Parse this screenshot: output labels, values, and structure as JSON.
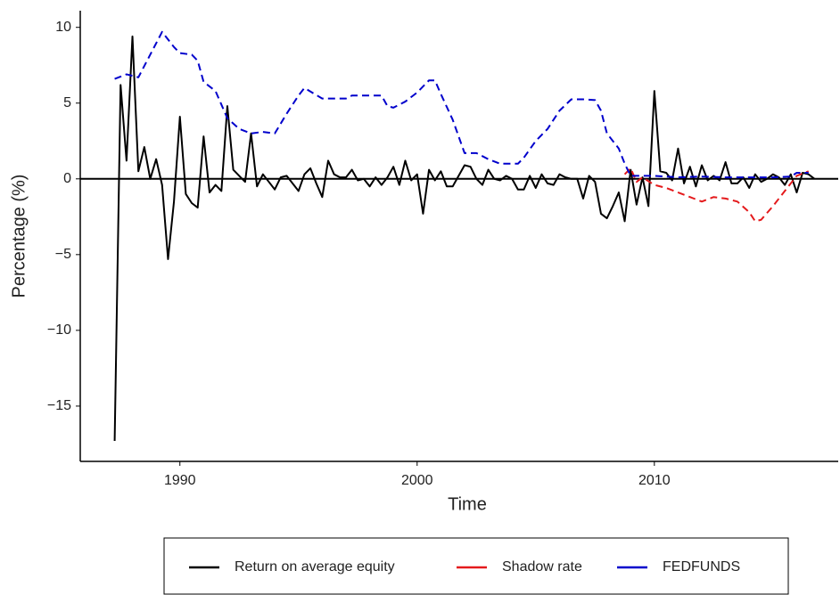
{
  "chart_data": {
    "type": "line",
    "x_label": "Time",
    "y_label": "Percentage (%)",
    "xlim": [
      1985.8,
      2017.75
    ],
    "ylim": [
      -18.65,
      11.1
    ],
    "xticks": [
      1990,
      2000,
      2010
    ],
    "yticks": [
      {
        "value": -15,
        "label": "−15"
      },
      {
        "value": -10,
        "label": "−10"
      },
      {
        "value": -5,
        "label": "−5"
      },
      0,
      5,
      10
    ],
    "reference_line": 0,
    "legend_position": "bottom",
    "series": [
      {
        "name": "Return on average equity",
        "color": "#000000",
        "linestyle": "solid",
        "x": [
          1987.25,
          1987.5,
          1987.75,
          1988,
          1988.25,
          1988.5,
          1988.75,
          1989,
          1989.25,
          1989.5,
          1989.75,
          1990,
          1990.25,
          1990.5,
          1990.75,
          1991,
          1991.25,
          1991.5,
          1991.75,
          1992,
          1992.25,
          1992.5,
          1992.75,
          1993,
          1993.25,
          1993.5,
          1993.75,
          1994,
          1994.25,
          1994.5,
          1994.75,
          1995,
          1995.25,
          1995.5,
          1995.75,
          1996,
          1996.25,
          1996.5,
          1996.75,
          1997,
          1997.25,
          1997.5,
          1997.75,
          1998,
          1998.25,
          1998.5,
          1998.75,
          1999,
          1999.25,
          1999.5,
          1999.75,
          2000,
          2000.25,
          2000.5,
          2000.75,
          2001,
          2001.25,
          2001.5,
          2001.75,
          2002,
          2002.25,
          2002.5,
          2002.75,
          2003,
          2003.25,
          2003.5,
          2003.75,
          2004,
          2004.25,
          2004.5,
          2004.75,
          2005,
          2005.25,
          2005.5,
          2005.75,
          2006,
          2006.25,
          2006.5,
          2006.75,
          2007,
          2007.25,
          2007.5,
          2007.75,
          2008,
          2008.25,
          2008.5,
          2008.75,
          2009,
          2009.25,
          2009.5,
          2009.75,
          2010,
          2010.25,
          2010.5,
          2010.75,
          2011,
          2011.25,
          2011.5,
          2011.75,
          2012,
          2012.25,
          2012.5,
          2012.75,
          2013,
          2013.25,
          2013.5,
          2013.75,
          2014,
          2014.25,
          2014.5,
          2014.75,
          2015,
          2015.25,
          2015.5,
          2015.75,
          2016,
          2016.25,
          2016.5,
          2016.75
        ],
        "values": [
          -17.3,
          6.2,
          1.2,
          9.4,
          0.5,
          2.1,
          0.0,
          1.3,
          -0.4,
          -5.3,
          -1.5,
          4.1,
          -1.0,
          -1.6,
          -1.9,
          2.8,
          -0.9,
          -0.4,
          -0.8,
          4.8,
          0.6,
          0.2,
          -0.2,
          3.0,
          -0.5,
          0.3,
          -0.2,
          -0.7,
          0.1,
          0.2,
          -0.3,
          -0.8,
          0.3,
          0.7,
          -0.3,
          -1.2,
          1.2,
          0.3,
          0.1,
          0.1,
          0.6,
          -0.1,
          0.0,
          -0.5,
          0.1,
          -0.4,
          0.1,
          0.8,
          -0.4,
          1.2,
          -0.1,
          0.3,
          -2.3,
          0.6,
          -0.1,
          0.5,
          -0.5,
          -0.5,
          0.2,
          0.9,
          0.8,
          0.0,
          -0.4,
          0.6,
          0.0,
          -0.1,
          0.2,
          0.0,
          -0.7,
          -0.7,
          0.2,
          -0.6,
          0.3,
          -0.3,
          -0.4,
          0.3,
          0.1,
          0.0,
          0.0,
          -1.3,
          0.2,
          -0.2,
          -2.3,
          -2.6,
          -1.8,
          -0.9,
          -2.8,
          0.6,
          -1.7,
          0.1,
          -1.8,
          5.8,
          0.5,
          0.4,
          -0.1,
          2.0,
          -0.3,
          0.8,
          -0.5,
          0.9,
          -0.1,
          0.2,
          -0.1,
          1.1,
          -0.3,
          -0.3,
          0.1,
          -0.6,
          0.3,
          -0.2,
          0.0,
          0.3,
          0.1,
          -0.4,
          0.3,
          -0.9,
          0.4,
          0.3,
          0.0
        ]
      },
      {
        "name": "Shadow rate",
        "color": "#e41a1c",
        "linestyle": "dashed",
        "x": [
          2008.75,
          2009,
          2009.25,
          2009.5,
          2010,
          2010.5,
          2011,
          2011.5,
          2012,
          2012.5,
          2013,
          2013.5,
          2014,
          2014.25,
          2014.5,
          2015,
          2015.5,
          2016,
          2016.5
        ],
        "values": [
          0.3,
          0.7,
          -0.2,
          0.1,
          -0.4,
          -0.6,
          -0.9,
          -1.2,
          -1.5,
          -1.2,
          -1.3,
          -1.5,
          -2.2,
          -2.8,
          -2.7,
          -1.8,
          -0.8,
          0.2,
          0.5
        ]
      },
      {
        "name": "FEDFUNDS",
        "color": "#0000cc",
        "linestyle": "dashed",
        "x": [
          1987.25,
          1987.75,
          1988.25,
          1988.75,
          1989.25,
          1989.75,
          1990,
          1990.5,
          1990.75,
          1991,
          1991.5,
          1992,
          1992.5,
          1993,
          1993.5,
          1994,
          1994.5,
          1995,
          1995.25,
          1996,
          1997,
          1997.25,
          1998,
          1998.5,
          1998.75,
          1999,
          1999.5,
          2000,
          2000.5,
          2000.75,
          2001,
          2001.5,
          2002,
          2002.5,
          2003,
          2003.5,
          2004.25,
          2004.5,
          2005,
          2005.5,
          2006,
          2006.5,
          2007,
          2007.5,
          2007.75,
          2008,
          2008.5,
          2008.75,
          2009,
          2010,
          2011,
          2012,
          2013,
          2014,
          2015,
          2015.75,
          2016,
          2016.5
        ],
        "values": [
          6.6,
          6.9,
          6.7,
          8.2,
          9.7,
          8.7,
          8.3,
          8.2,
          7.8,
          6.4,
          5.8,
          4.0,
          3.3,
          3.0,
          3.1,
          3.0,
          4.3,
          5.5,
          6.0,
          5.3,
          5.3,
          5.5,
          5.5,
          5.5,
          4.8,
          4.7,
          5.1,
          5.7,
          6.5,
          6.5,
          5.6,
          3.9,
          1.7,
          1.7,
          1.3,
          1.0,
          1.0,
          1.4,
          2.5,
          3.3,
          4.5,
          5.25,
          5.25,
          5.2,
          4.5,
          3.0,
          2.0,
          1.0,
          0.2,
          0.2,
          0.1,
          0.15,
          0.1,
          0.1,
          0.1,
          0.15,
          0.4,
          0.4
        ]
      }
    ]
  }
}
